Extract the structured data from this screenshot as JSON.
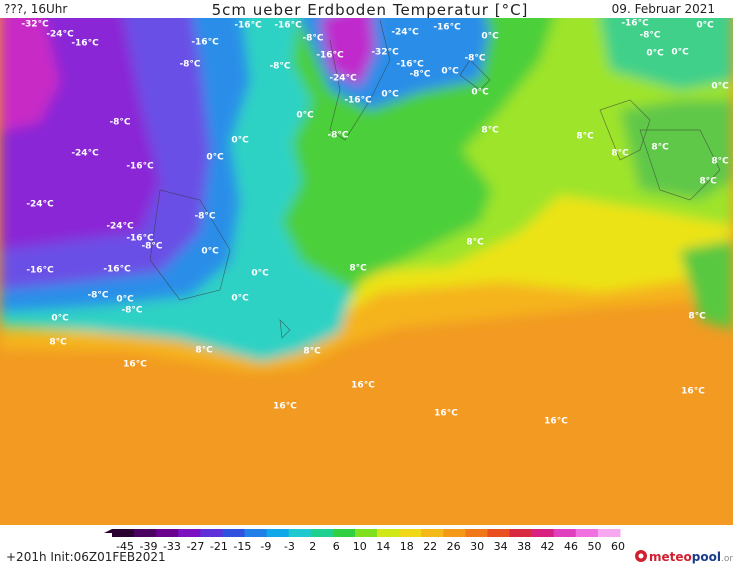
{
  "header": {
    "run": "???, 16Uhr",
    "title": "5cm ueber Erdboden Temperatur [°C]",
    "date": "09. Februar 2021"
  },
  "map": {
    "labels": [
      "-32°C",
      "-24°C",
      "-16°C",
      "-16°C",
      "-16°C",
      "-8°C",
      "-16°C",
      "-24°C",
      "-16°C",
      "0°C",
      "-16°C",
      "0°C",
      "-8°C",
      "0°C",
      "0°C",
      "-32°C",
      "-16°C",
      "-8°C",
      "-16°C",
      "-8°C",
      "0°C",
      "-24°C",
      "-8°C",
      "-8°C",
      "0°C",
      "-16°C",
      "0°C",
      "0°C",
      "0°C",
      "-8°C",
      "-8°C",
      "8°C",
      "8°C",
      "0°C",
      "-24°C",
      "0°C",
      "8°C",
      "8°C",
      "8°C",
      "-16°C",
      "8°C",
      "-24°C",
      "-8°C",
      "-24°C",
      "-16°C",
      "-8°C",
      "0°C",
      "8°C",
      "-16°C",
      "-16°C",
      "0°C",
      "8°C",
      "-8°C",
      "0°C",
      "0°C",
      "-8°C",
      "0°C",
      "8°C",
      "8°C",
      "8°C",
      "8°C",
      "16°C",
      "16°C",
      "16°C",
      "16°C",
      "16°C",
      "16°C"
    ]
  },
  "colorbar": {
    "ticks": [
      -45,
      -39,
      -33,
      -27,
      -21,
      -15,
      -9,
      -3,
      2,
      6,
      10,
      14,
      18,
      22,
      26,
      30,
      34,
      38,
      42,
      46,
      50,
      60
    ]
  },
  "footer": {
    "init": "+201h Init:06Z01FEB2021",
    "logo": [
      "meteo",
      "pool",
      ".org"
    ]
  }
}
